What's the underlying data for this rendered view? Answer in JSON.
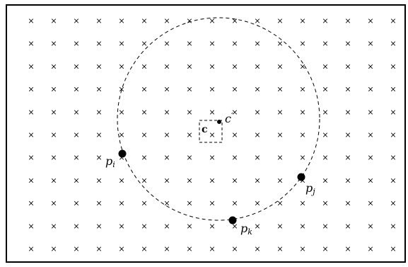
{
  "grid": {
    "rows": 11,
    "cols": 17,
    "marker": "×"
  },
  "circle": {
    "style": "dashed"
  },
  "labels": {
    "center": "c",
    "center_prime_base": "c",
    "center_prime_mark": "′",
    "pi_base": "p",
    "pi_sub": "i",
    "pj_base": "p",
    "pj_sub": "j",
    "pk_base": "p",
    "pk_sub": "k"
  }
}
